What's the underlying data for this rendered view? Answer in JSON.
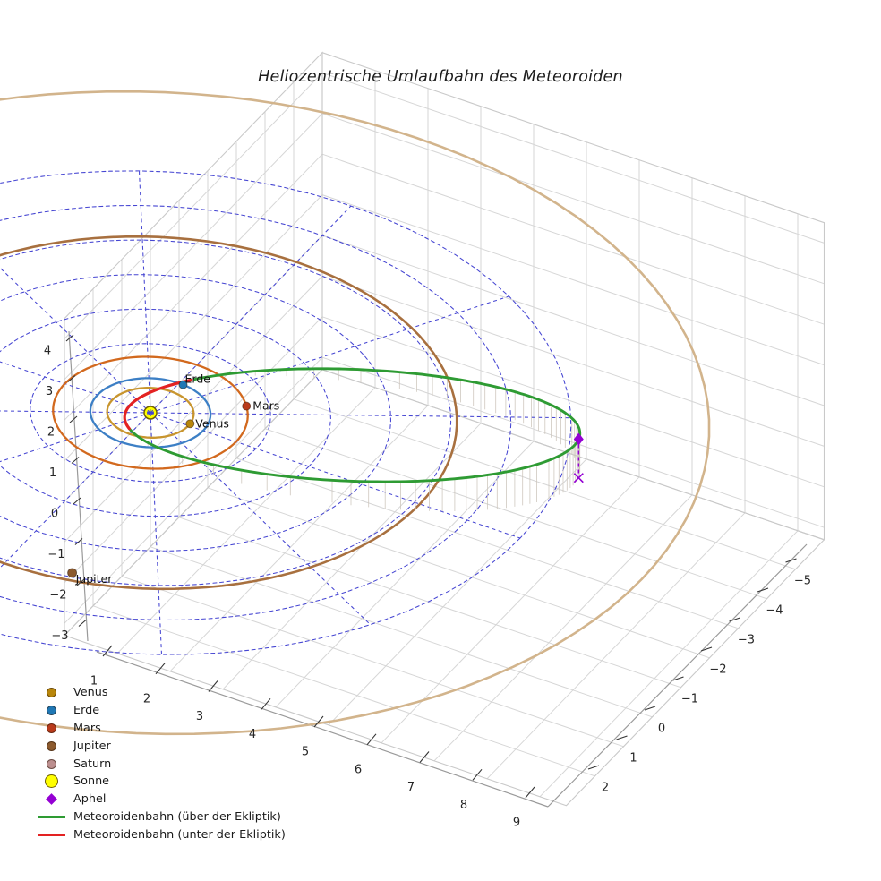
{
  "chart_data": {
    "type": "line3d",
    "title": "Heliozentrische Umlaufbahn des Meteoroiden",
    "axes": {
      "x": {
        "ticks": [
          1,
          2,
          3,
          4,
          5,
          6,
          7,
          8,
          9
        ],
        "range": [
          0,
          9.5
        ]
      },
      "y": {
        "ticks": [
          -5,
          -4,
          -3,
          -2,
          -1,
          0,
          1,
          2
        ],
        "range": [
          -6,
          3
        ]
      },
      "z": {
        "ticks": [
          4,
          3,
          2,
          1,
          0,
          -1,
          -2,
          -3
        ],
        "range": [
          -3.3,
          4.5
        ]
      },
      "grid": true,
      "grid_color": "#d6d6d6",
      "tick_color": "#262626"
    },
    "ecliptic_grid": {
      "circles_au": [
        1,
        2,
        3,
        4,
        5,
        6,
        7
      ],
      "spoke_step_deg": 30,
      "color": "#4545d2",
      "style": "dashed"
    },
    "sun": {
      "label": "Sonne",
      "position_au": [
        0,
        0,
        0
      ],
      "color": "#ffff00",
      "edge_color": "#6e5f00"
    },
    "planets": [
      {
        "name": "Venus",
        "orbit_radius_au": 0.72,
        "angle_deg": -5,
        "orbit_color": "#c8952e",
        "dot_color": "#b8860b",
        "labeled": true
      },
      {
        "name": "Erde",
        "orbit_radius_au": 1.0,
        "angle_deg": -85.5,
        "orbit_color": "#3c7fc5",
        "dot_color": "#1f77b4",
        "labeled": true
      },
      {
        "name": "Mars",
        "orbit_radius_au": 1.62,
        "angle_deg": -38,
        "orbit_color": "#d2691e",
        "dot_color": "#b93a1b",
        "labeled": true
      },
      {
        "name": "Jupiter",
        "orbit_radius_au": 5.1,
        "angle_deg": 77,
        "dot_r_au": 4.88,
        "orbit_color": "#a8703f",
        "dot_color": "#8c5a2e",
        "labeled": true
      },
      {
        "name": "Saturn",
        "orbit_radius_au": 9.3,
        "angle_deg": null,
        "orbit_color": "#d2b48c",
        "dot_color": "#bc8f8f",
        "labeled": false
      }
    ],
    "meteoroid": {
      "aphelion_au": [
        7.0,
        -2.04,
        0.95
      ],
      "perihelion_au": [
        -0.4,
        0.117,
        -0.054
      ],
      "minor_axis_dir": [
        -0.26,
        -0.962,
        -0.052
      ],
      "semi_minor_au": 1.765,
      "above_label": "Meteoroidenbahn (über der Ekliptik)",
      "above_color": "#2e9b33",
      "below_label": "Meteoroidenbahn (unter der Ekliptik)",
      "below_color": "#e32222",
      "aphel": {
        "label": "Aphel",
        "color": "#9400d3"
      }
    },
    "legend": [
      {
        "label": "Venus",
        "marker": "dot",
        "color": "#b8860b"
      },
      {
        "label": "Erde",
        "marker": "dot",
        "color": "#1f77b4"
      },
      {
        "label": "Mars",
        "marker": "dot",
        "color": "#b93a1b"
      },
      {
        "label": "Jupiter",
        "marker": "dot",
        "color": "#8c5a2e"
      },
      {
        "label": "Saturn",
        "marker": "dot",
        "color": "#bc8f8f"
      },
      {
        "label": "Sonne",
        "marker": "circle-lg",
        "color": "#ffff00",
        "edge": "#6e5f00"
      },
      {
        "label": "Aphel",
        "marker": "diamond",
        "color": "#9400d3"
      },
      {
        "label": "Meteoroidenbahn (über der Ekliptik)",
        "marker": "line",
        "color": "#2e9b33"
      },
      {
        "label": "Meteoroidenbahn (unter der Ekliptik)",
        "marker": "line",
        "color": "#e32222"
      }
    ]
  }
}
